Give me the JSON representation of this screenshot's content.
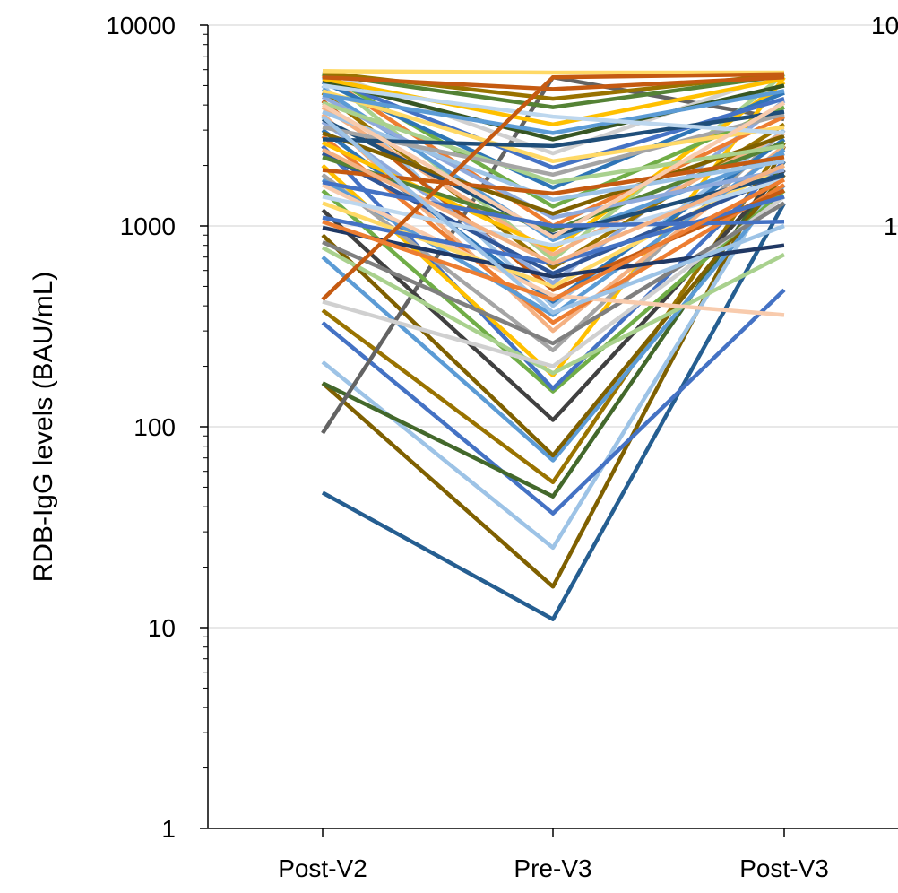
{
  "chart_data": {
    "type": "line",
    "title": "",
    "xlabel": "",
    "ylabel": "RDB-IgG levels (BAU/mL)",
    "y_scale": "log",
    "ylim": [
      1,
      10000
    ],
    "yticks": [
      "1",
      "10",
      "100",
      "1000",
      "10000"
    ],
    "categories": [
      "Post-V2",
      "Pre-V3",
      "Post-V3"
    ],
    "grid": "horizontal major gridlines",
    "legend": "none",
    "clipped_right_panel_visible_text": [
      "10",
      "1"
    ],
    "series": [
      {
        "values": [
          47,
          11,
          1300
        ],
        "color": "#255e91"
      },
      {
        "values": [
          165,
          16,
          2500
        ],
        "color": "#7f6000"
      },
      {
        "values": [
          210,
          25,
          1900
        ],
        "color": "#9dc3e6"
      },
      {
        "values": [
          330,
          37,
          480
        ],
        "color": "#4472c4"
      },
      {
        "values": [
          165,
          45,
          2100
        ],
        "color": "#43682b"
      },
      {
        "values": [
          380,
          53,
          2600
        ],
        "color": "#997300"
      },
      {
        "values": [
          700,
          68,
          1600
        ],
        "color": "#5b9bd5"
      },
      {
        "values": [
          900,
          72,
          1800
        ],
        "color": "#7f6000"
      },
      {
        "values": [
          93,
          5500,
          3400
        ],
        "color": "#636363"
      },
      {
        "values": [
          1200,
          108,
          1900
        ],
        "color": "#404040"
      },
      {
        "values": [
          1500,
          150,
          1500
        ],
        "color": "#70ad47"
      },
      {
        "values": [
          2500,
          155,
          2100
        ],
        "color": "#4472c4"
      },
      {
        "values": [
          2000,
          180,
          5500
        ],
        "color": "#ffc000"
      },
      {
        "values": [
          780,
          185,
          720
        ],
        "color": "#a9d18e"
      },
      {
        "values": [
          420,
          200,
          1400
        ],
        "color": "#d0d0d0"
      },
      {
        "values": [
          1800,
          240,
          3000
        ],
        "color": "#a5a5a5"
      },
      {
        "values": [
          830,
          260,
          1300
        ],
        "color": "#7f7f7f"
      },
      {
        "values": [
          3600,
          300,
          2500
        ],
        "color": "#f4b183"
      },
      {
        "values": [
          2800,
          330,
          1600
        ],
        "color": "#ed7d31"
      },
      {
        "values": [
          1700,
          360,
          2400
        ],
        "color": "#5b9bd5"
      },
      {
        "values": [
          5000,
          400,
          3000
        ],
        "color": "#9dc3e6"
      },
      {
        "values": [
          3000,
          420,
          2700
        ],
        "color": "#2e75b6"
      },
      {
        "values": [
          1600,
          450,
          360
        ],
        "color": "#f8cbad"
      },
      {
        "values": [
          4200,
          480,
          1500
        ],
        "color": "#c55a11"
      },
      {
        "values": [
          1300,
          500,
          2000
        ],
        "color": "#ffd966"
      },
      {
        "values": [
          3300,
          520,
          4200
        ],
        "color": "#8faadc"
      },
      {
        "values": [
          980,
          560,
          800
        ],
        "color": "#203864"
      },
      {
        "values": [
          2300,
          580,
          1800
        ],
        "color": "#2f5597"
      },
      {
        "values": [
          4600,
          620,
          3200
        ],
        "color": "#997300"
      },
      {
        "values": [
          1100,
          650,
          1400
        ],
        "color": "#4472c4"
      },
      {
        "values": [
          5700,
          680,
          5700
        ],
        "color": "#a9d18e"
      },
      {
        "values": [
          3900,
          720,
          2900
        ],
        "color": "#f4b183"
      },
      {
        "values": [
          2600,
          760,
          5200
        ],
        "color": "#ffc000"
      },
      {
        "values": [
          1400,
          800,
          1700
        ],
        "color": "#bdd7ee"
      },
      {
        "values": [
          4800,
          850,
          2300
        ],
        "color": "#5b9bd5"
      },
      {
        "values": [
          3400,
          900,
          1800
        ],
        "color": "#1f4e79"
      },
      {
        "values": [
          2200,
          950,
          2600
        ],
        "color": "#548235"
      },
      {
        "values": [
          5600,
          1000,
          3500
        ],
        "color": "#ed7d31"
      },
      {
        "values": [
          4400,
          1100,
          1900
        ],
        "color": "#8faadc"
      },
      {
        "values": [
          2900,
          1150,
          2800
        ],
        "color": "#7f6000"
      },
      {
        "values": [
          5800,
          1250,
          3900
        ],
        "color": "#70ad47"
      },
      {
        "values": [
          3700,
          1350,
          2100
        ],
        "color": "#9dc3e6"
      },
      {
        "values": [
          1900,
          1450,
          2200
        ],
        "color": "#c55a11"
      },
      {
        "values": [
          5200,
          1550,
          4600
        ],
        "color": "#2e75b6"
      },
      {
        "values": [
          4100,
          1650,
          2500
        ],
        "color": "#a9d18e"
      },
      {
        "values": [
          3100,
          1800,
          3600
        ],
        "color": "#a5a5a5"
      },
      {
        "values": [
          5500,
          1950,
          4300
        ],
        "color": "#4472c4"
      },
      {
        "values": [
          4700,
          2100,
          3100
        ],
        "color": "#ffd966"
      },
      {
        "values": [
          5900,
          2300,
          5800
        ],
        "color": "#d0d0d0"
      },
      {
        "values": [
          2700,
          2500,
          3700
        ],
        "color": "#1f4e79"
      },
      {
        "values": [
          5300,
          2700,
          5000
        ],
        "color": "#375623"
      },
      {
        "values": [
          4500,
          2900,
          4700
        ],
        "color": "#5b9bd5"
      },
      {
        "values": [
          5400,
          3200,
          5400
        ],
        "color": "#ffc000"
      },
      {
        "values": [
          5000,
          3500,
          2900
        ],
        "color": "#bdd7ee"
      },
      {
        "values": [
          5700,
          3900,
          5600
        ],
        "color": "#548235"
      },
      {
        "values": [
          5800,
          4300,
          5700
        ],
        "color": "#997300"
      },
      {
        "values": [
          5500,
          4800,
          5500
        ],
        "color": "#c55a11"
      },
      {
        "values": [
          5900,
          5800,
          5800
        ],
        "color": "#ffd966"
      },
      {
        "values": [
          430,
          5500,
          5700
        ],
        "color": "#c55a11"
      },
      {
        "values": [
          4000,
          880,
          4100
        ],
        "color": "#f8cbad"
      },
      {
        "values": [
          1650,
          1000,
          1050
        ],
        "color": "#4472c4"
      },
      {
        "values": [
          2400,
          650,
          2000
        ],
        "color": "#f4b183"
      },
      {
        "values": [
          3500,
          370,
          1000
        ],
        "color": "#9dc3e6"
      },
      {
        "values": [
          1050,
          430,
          1700
        ],
        "color": "#ed7d31"
      }
    ]
  }
}
